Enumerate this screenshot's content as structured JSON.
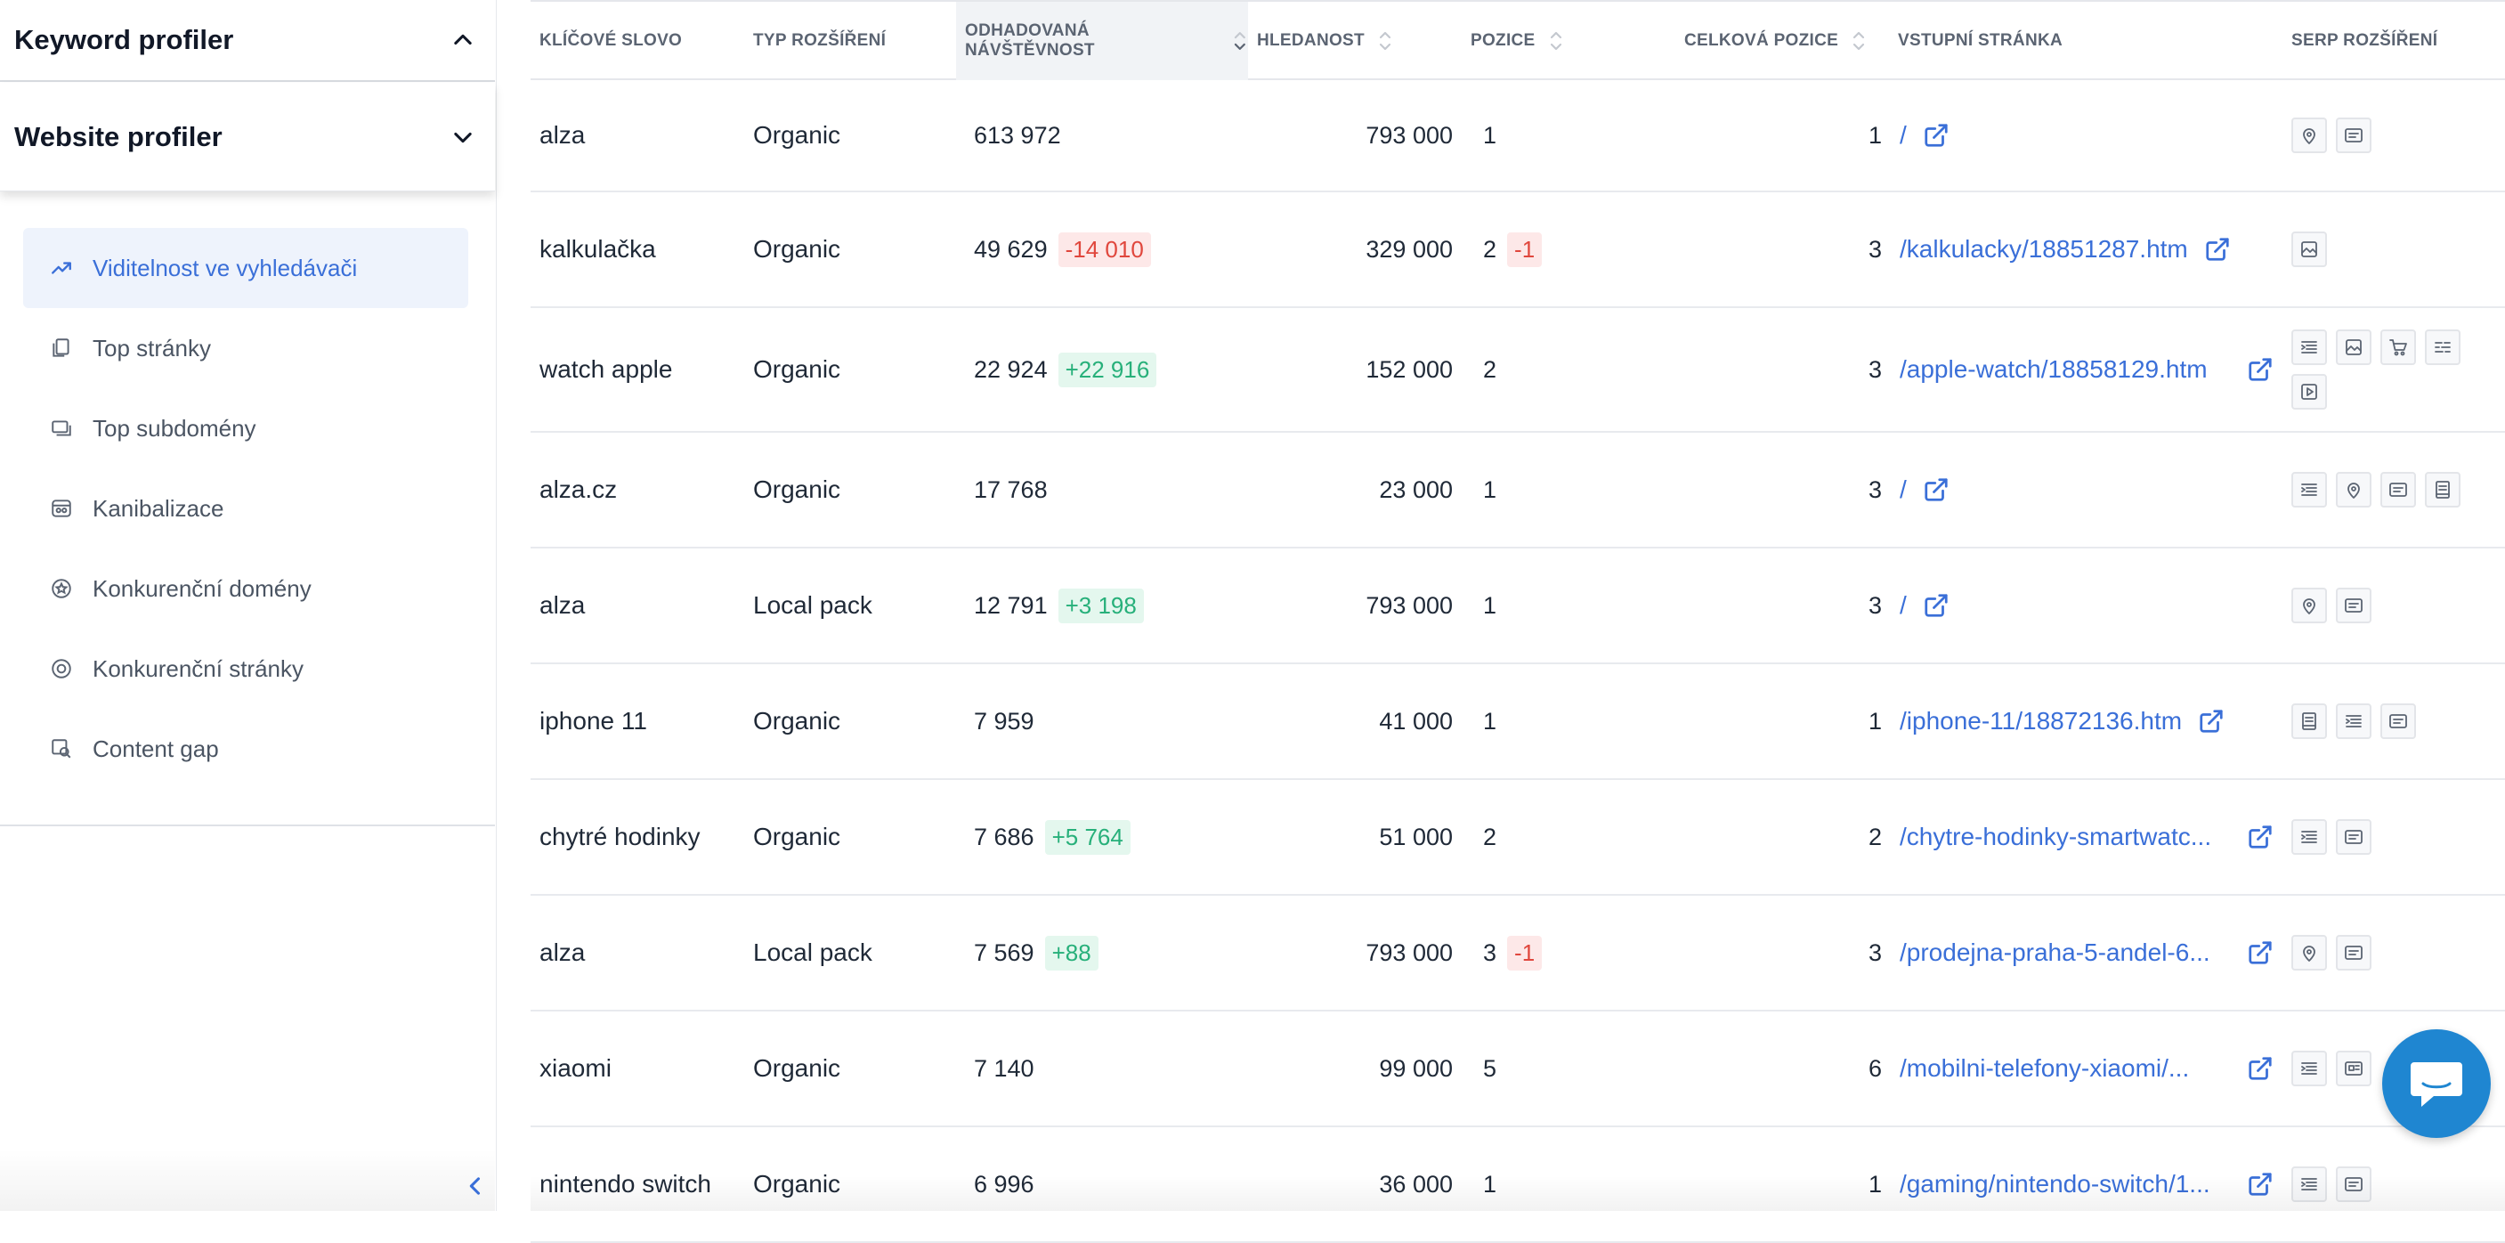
{
  "sidebar": {
    "keyword_profiler": "Keyword profiler",
    "website_profiler": "Website profiler",
    "items": [
      {
        "label": "Viditelnost ve vyhledávači",
        "icon": "trend-up-icon"
      },
      {
        "label": "Top stránky",
        "icon": "pages-icon"
      },
      {
        "label": "Top subdomény",
        "icon": "subdomains-icon"
      },
      {
        "label": "Kanibalizace",
        "icon": "cannibalization-icon"
      },
      {
        "label": "Konkurenční domény",
        "icon": "competitor-domains-icon"
      },
      {
        "label": "Konkurenční stránky",
        "icon": "competitor-pages-icon"
      },
      {
        "label": "Content gap",
        "icon": "content-gap-icon"
      }
    ],
    "active_index": 0
  },
  "table": {
    "headers": {
      "keyword": "KLÍČOVÉ SLOVO",
      "type": "TYP ROZŠÍŘENÍ",
      "traffic": "ODHADOVANÁ NÁVŠTĚVNOST",
      "volume": "HLEDANOST",
      "position": "POZICE",
      "total_position": "CELKOVÁ POZICE",
      "landing": "VSTUPNÍ STRÁNKA",
      "serp": "SERP ROZŠÍŘENÍ"
    },
    "rows": [
      {
        "keyword": "alza",
        "type": "Organic",
        "traffic": "613 972",
        "traffic_delta": "",
        "volume": "793 000",
        "position": "1",
        "position_delta": "",
        "total": "1",
        "url": "/",
        "serp": [
          "map-pin-icon",
          "reviews-icon"
        ]
      },
      {
        "keyword": "kalkulačka",
        "type": "Organic",
        "traffic": "49 629",
        "traffic_delta": "-14 010",
        "volume": "329 000",
        "position": "2",
        "position_delta": "-1",
        "total": "3",
        "url": "/kalkulacky/18851287.htm",
        "serp": [
          "image-icon"
        ]
      },
      {
        "keyword": "watch apple",
        "type": "Organic",
        "traffic": "22 924",
        "traffic_delta": "+22 916",
        "volume": "152 000",
        "position": "2",
        "position_delta": "",
        "total": "3",
        "url": "/apple-watch/18858129.htm",
        "serp": [
          "sitelinks-icon",
          "image-icon",
          "shopping-cart-icon",
          "faq-icon",
          "video-icon"
        ]
      },
      {
        "keyword": "alza.cz",
        "type": "Organic",
        "traffic": "17 768",
        "traffic_delta": "",
        "volume": "23 000",
        "position": "1",
        "position_delta": "",
        "total": "3",
        "url": "/",
        "serp": [
          "sitelinks-icon",
          "map-pin-icon",
          "reviews-icon",
          "knowledge-panel-icon"
        ]
      },
      {
        "keyword": "alza",
        "type": "Local pack",
        "traffic": "12 791",
        "traffic_delta": "+3 198",
        "volume": "793 000",
        "position": "1",
        "position_delta": "",
        "total": "3",
        "url": "/",
        "serp": [
          "map-pin-icon",
          "reviews-icon"
        ]
      },
      {
        "keyword": "iphone 11",
        "type": "Organic",
        "traffic": "7 959",
        "traffic_delta": "",
        "volume": "41 000",
        "position": "1",
        "position_delta": "",
        "total": "1",
        "url": "/iphone-11/18872136.htm",
        "serp": [
          "knowledge-panel-icon",
          "sitelinks-icon",
          "reviews-icon"
        ]
      },
      {
        "keyword": "chytré hodinky",
        "type": "Organic",
        "traffic": "7 686",
        "traffic_delta": "+5 764",
        "volume": "51 000",
        "position": "2",
        "position_delta": "",
        "total": "2",
        "url": "/chytre-hodinky-smartwatc...",
        "serp": [
          "sitelinks-icon",
          "reviews-icon"
        ]
      },
      {
        "keyword": "alza",
        "type": "Local pack",
        "traffic": "7 569",
        "traffic_delta": "+88",
        "volume": "793 000",
        "position": "3",
        "position_delta": "-1",
        "total": "3",
        "url": "/prodejna-praha-5-andel-6...",
        "serp": [
          "map-pin-icon",
          "reviews-icon"
        ]
      },
      {
        "keyword": "xiaomi",
        "type": "Organic",
        "traffic": "7 140",
        "traffic_delta": "",
        "volume": "99 000",
        "position": "5",
        "position_delta": "",
        "total": "6",
        "url": "/mobilni-telefony-xiaomi/...",
        "serp": [
          "sitelinks-icon",
          "news-icon"
        ]
      },
      {
        "keyword": "nintendo switch",
        "type": "Organic",
        "traffic": "6 996",
        "traffic_delta": "",
        "volume": "36 000",
        "position": "1",
        "position_delta": "",
        "total": "1",
        "url": "/gaming/nintendo-switch/1...",
        "serp": [
          "sitelinks-icon",
          "reviews-icon"
        ]
      }
    ]
  },
  "colors": {
    "accent": "#3a6fd8",
    "negative": "#e0473d",
    "positive": "#27b07a",
    "chat": "#1f86d1"
  }
}
